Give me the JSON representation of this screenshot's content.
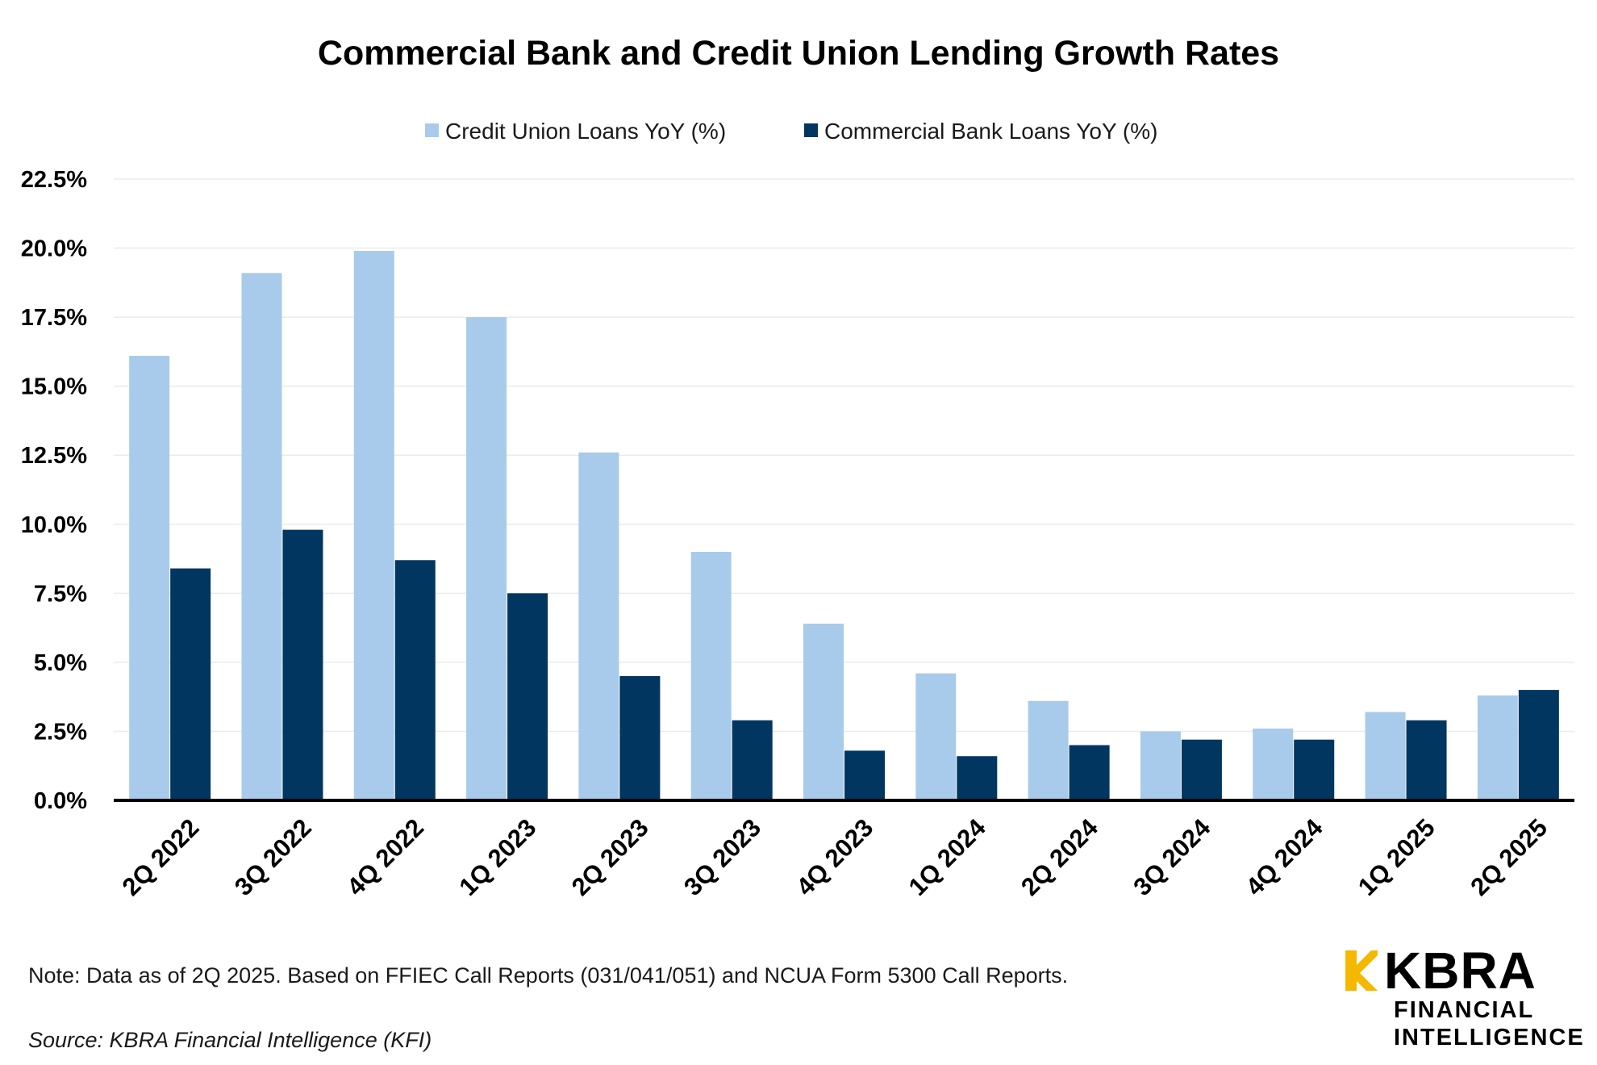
{
  "chart_data": {
    "type": "bar",
    "title": "Commercial Bank and Credit Union Lending Growth Rates",
    "xlabel": "",
    "ylabel": "",
    "ylim": [
      0,
      22.5
    ],
    "yticks": [
      "0.0%",
      "2.5%",
      "5.0%",
      "7.5%",
      "10.0%",
      "12.5%",
      "15.0%",
      "17.5%",
      "20.0%",
      "22.5%"
    ],
    "ytick_values": [
      0,
      2.5,
      5,
      7.5,
      10,
      12.5,
      15,
      17.5,
      20,
      22.5
    ],
    "grid": true,
    "legend_position": "top-center",
    "categories": [
      "2Q 2022",
      "3Q 2022",
      "4Q 2022",
      "1Q 2023",
      "2Q 2023",
      "3Q 2023",
      "4Q 2023",
      "1Q 2024",
      "2Q 2024",
      "3Q 2024",
      "4Q 2024",
      "1Q 2025",
      "2Q 2025"
    ],
    "series": [
      {
        "name": "Credit Union Loans YoY (%)",
        "color": "#a9cbeb",
        "values": [
          16.1,
          19.1,
          19.9,
          17.5,
          12.6,
          9.0,
          6.4,
          4.6,
          3.6,
          2.5,
          2.6,
          3.2,
          3.8
        ]
      },
      {
        "name": "Commercial Bank Loans YoY (%)",
        "color": "#003660",
        "values": [
          8.4,
          9.8,
          8.7,
          7.5,
          4.5,
          2.9,
          1.8,
          1.6,
          2.0,
          2.2,
          2.2,
          2.9,
          4.0
        ]
      }
    ]
  },
  "footer": {
    "note": "Note: Data as of 2Q 2025. Based on FFIEC Call Reports (031/041/051) and NCUA Form 5300 Call Reports.",
    "source": "Source: KBRA Financial Intelligence (KFI)"
  },
  "logo": {
    "name": "KBRA",
    "line1": "FINANCIAL",
    "line2": "INTELLIGENCE",
    "accent_color": "#f5b800"
  },
  "colors": {
    "gridline": "#ececec",
    "axis": "#000000"
  }
}
